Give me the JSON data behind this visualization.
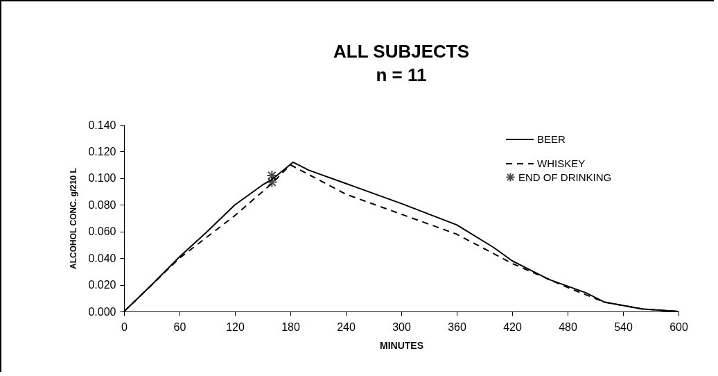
{
  "chart_data": {
    "type": "line",
    "title": "ALL SUBJECTS",
    "subtitle": "n = 11",
    "xlabel": "MINUTES",
    "ylabel": "ALCOHOL CONC. g/210 L",
    "xlim": [
      0,
      600
    ],
    "xticks": [
      0,
      60,
      120,
      180,
      240,
      300,
      360,
      420,
      480,
      540,
      600
    ],
    "ylim": [
      0,
      0.14
    ],
    "yticks": [
      {
        "value": 0,
        "label": "0.000"
      },
      {
        "value": 0.02,
        "label": "0.020"
      },
      {
        "value": 0.04,
        "label": "0.040"
      },
      {
        "value": 0.06,
        "label": "0.060"
      },
      {
        "value": 0.08,
        "label": "0.080"
      },
      {
        "value": 0.1,
        "label": "0.100"
      },
      {
        "value": 0.12,
        "label": "0.120"
      },
      {
        "value": 0.14,
        "label": "0.140"
      }
    ],
    "legend": "top right",
    "grid": false,
    "series": [
      {
        "name": "BEER",
        "type": "line",
        "line_style": "solid",
        "color": "#000000",
        "x": [
          0,
          30,
          60,
          90,
          120,
          150,
          160,
          183,
          200,
          240,
          300,
          360,
          400,
          420,
          460,
          500,
          520,
          560,
          600
        ],
        "values": [
          0,
          0.02,
          0.041,
          0.06,
          0.08,
          0.095,
          0.099,
          0.112,
          0.106,
          0.096,
          0.081,
          0.065,
          0.048,
          0.038,
          0.024,
          0.014,
          0.007,
          0.002,
          0
        ]
      },
      {
        "name": "WHISKEY",
        "type": "line",
        "line_style": "dashed",
        "color": "#000000",
        "x": [
          0,
          60,
          120,
          160,
          180,
          240,
          300,
          360,
          420,
          480,
          520,
          560,
          600
        ],
        "values": [
          0,
          0.04,
          0.072,
          0.096,
          0.11,
          0.088,
          0.073,
          0.058,
          0.036,
          0.018,
          0.007,
          0.002,
          0
        ]
      },
      {
        "name": "END OF DRINKING",
        "type": "scatter",
        "marker": "cross",
        "color": "#000000",
        "x": [
          160,
          160
        ],
        "values": [
          0.102,
          0.097
        ]
      }
    ]
  }
}
